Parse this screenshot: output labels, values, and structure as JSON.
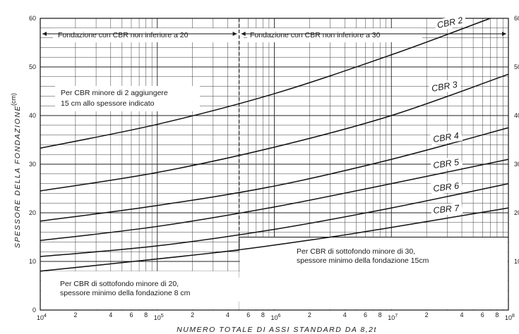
{
  "chart_data": {
    "type": "line",
    "title": "",
    "xlabel": "NUMERO TOTALE DI ASSI STANDARD DA 8,2t",
    "ylabel": "SPESSORE DELLA FONDAZIONE",
    "yunit": "(cm)",
    "xscale": "log",
    "xlim": [
      10000,
      100000000
    ],
    "ylim": [
      0,
      60
    ],
    "grid": true,
    "y_ticks": [
      "0",
      "10",
      "20",
      "30",
      "40",
      "50",
      "60"
    ],
    "y_ticks_right": [
      "60",
      "50",
      "40",
      "30",
      "20",
      "10"
    ],
    "x_major_ticks": [
      {
        "base": "10",
        "exp": "4",
        "value": 10000
      },
      {
        "base": "10",
        "exp": "5",
        "value": 100000
      },
      {
        "base": "10",
        "exp": "6",
        "value": 1000000
      },
      {
        "base": "10",
        "exp": "7",
        "value": 10000000
      },
      {
        "base": "10",
        "exp": "8",
        "value": 100000000
      }
    ],
    "x_minor_labels": [
      "2",
      "4",
      "6",
      "8"
    ],
    "series": [
      {
        "name": "CBR 2",
        "x": [
          10000,
          100000,
          1000000,
          10000000,
          70000000
        ],
        "y": [
          33.3,
          38.2,
          44.5,
          52.5,
          60
        ]
      },
      {
        "name": "CBR 3",
        "x": [
          10000,
          100000,
          1000000,
          10000000,
          100000000
        ],
        "y": [
          24.5,
          28.3,
          33.5,
          40.0,
          48.5
        ]
      },
      {
        "name": "CBR 4",
        "x": [
          10000,
          100000,
          1000000,
          10000000,
          100000000
        ],
        "y": [
          18.3,
          21.5,
          25.5,
          31.0,
          37.5
        ]
      },
      {
        "name": "CBR 5",
        "x": [
          10000,
          100000,
          1000000,
          10000000,
          100000000
        ],
        "y": [
          14.3,
          17.2,
          21.2,
          26.0,
          31.0
        ]
      },
      {
        "name": "CBR 6",
        "x": [
          10000,
          100000,
          1000000,
          10000000,
          100000000
        ],
        "y": [
          11.0,
          13.2,
          16.6,
          21.0,
          26.0
        ]
      },
      {
        "name": "CBR 7",
        "x": [
          10000,
          100000,
          500000,
          3000000,
          10000000,
          100000000
        ],
        "y": [
          8.0,
          10.5,
          12.4,
          15.0,
          17.0,
          21.0
        ]
      }
    ],
    "annotations": {
      "band_left": "Fondazione con CBR non inferiore a 20",
      "band_right": "Fondazione con CBR non inferiore a 30",
      "note_cbr2_line1": "Per CBR minore di 2 aggiungere",
      "note_cbr2_line2": "15 cm allo spessore indicato",
      "note_min30_line1": "Per CBR di sottofondo minore di 30,",
      "note_min30_line2": "spessore minimo della fondazione 15cm",
      "note_min20_line1": "Per CBR di sottofondo minore di 20,",
      "note_min20_line2": "spessore minimo della fondazione 8 cm"
    },
    "boundary_x": 500000,
    "min_thickness_20": 8,
    "min_thickness_30": 15
  }
}
